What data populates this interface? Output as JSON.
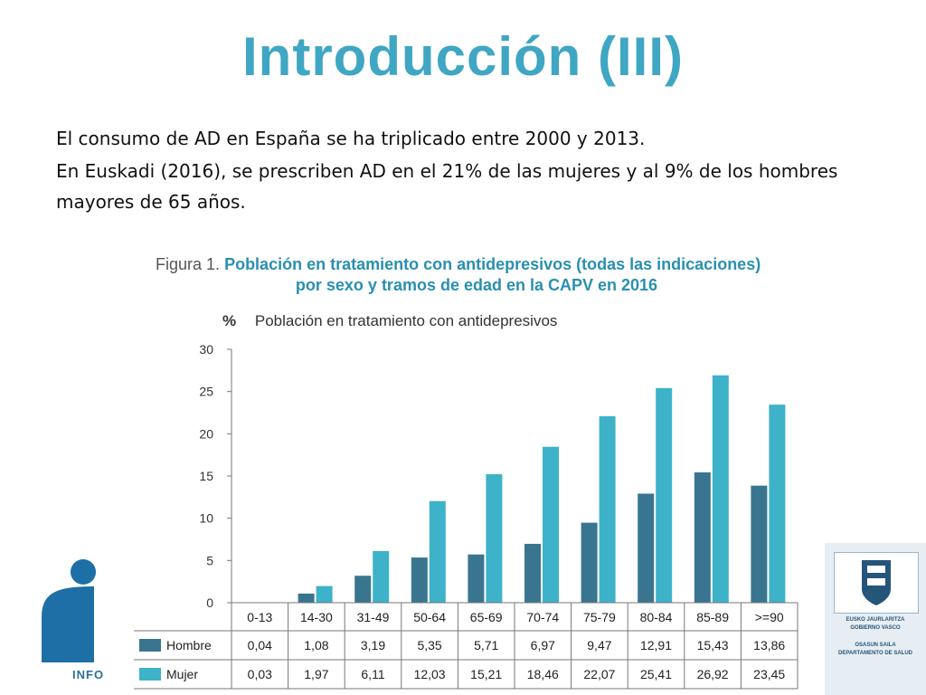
{
  "slide": {
    "title": "Introducción (III)",
    "bullets": [
      "El consumo de AD en España se ha triplicado entre 2000 y 2013.",
      "En Euskadi (2016), se prescriben AD en el 21% de las mujeres y al 9% de los hombres mayores de 65 años."
    ]
  },
  "figure": {
    "prefix": "Figura 1.",
    "title_line1": "Población en tratamiento con antidepresivos (todas las indicaciones)",
    "title_line2": "por sexo y tramos de edad en la CAPV en 2016"
  },
  "chart_data": {
    "type": "bar",
    "title": "Población en tratamiento con antidepresivos",
    "ylabel": "%",
    "ylim": [
      0,
      30
    ],
    "yticks": [
      0,
      5,
      10,
      15,
      20,
      25,
      30
    ],
    "grid": false,
    "categories": [
      "0-13",
      "14-30",
      "31-49",
      "50-64",
      "65-69",
      "70-74",
      "75-79",
      "80-84",
      "85-89",
      ">=90"
    ],
    "series": [
      {
        "name": "Hombre",
        "color": "#3a7590",
        "values": [
          0.04,
          1.08,
          3.19,
          5.35,
          5.71,
          6.97,
          9.47,
          12.91,
          15.43,
          13.86
        ],
        "labels": [
          "0,04",
          "1,08",
          "3,19",
          "5,35",
          "5,71",
          "6,97",
          "9,47",
          "12,91",
          "15,43",
          "13,86"
        ]
      },
      {
        "name": "Mujer",
        "color": "#3db2c9",
        "values": [
          0.03,
          1.97,
          6.11,
          12.03,
          15.21,
          18.46,
          22.07,
          25.41,
          26.92,
          23.45
        ],
        "labels": [
          "0,03",
          "1,97",
          "6,11",
          "12,03",
          "15,21",
          "18,46",
          "22,07",
          "25,41",
          "26,92",
          "23,45"
        ]
      }
    ]
  },
  "logos": {
    "info_text": "INFO",
    "gov_line1": "EUSKO JAURLARITZA",
    "gov_line2": "GOBIERNO VASCO",
    "gov_line3": "OSASUN SAILA",
    "gov_line4": "DEPARTAMENTO DE SALUD"
  }
}
